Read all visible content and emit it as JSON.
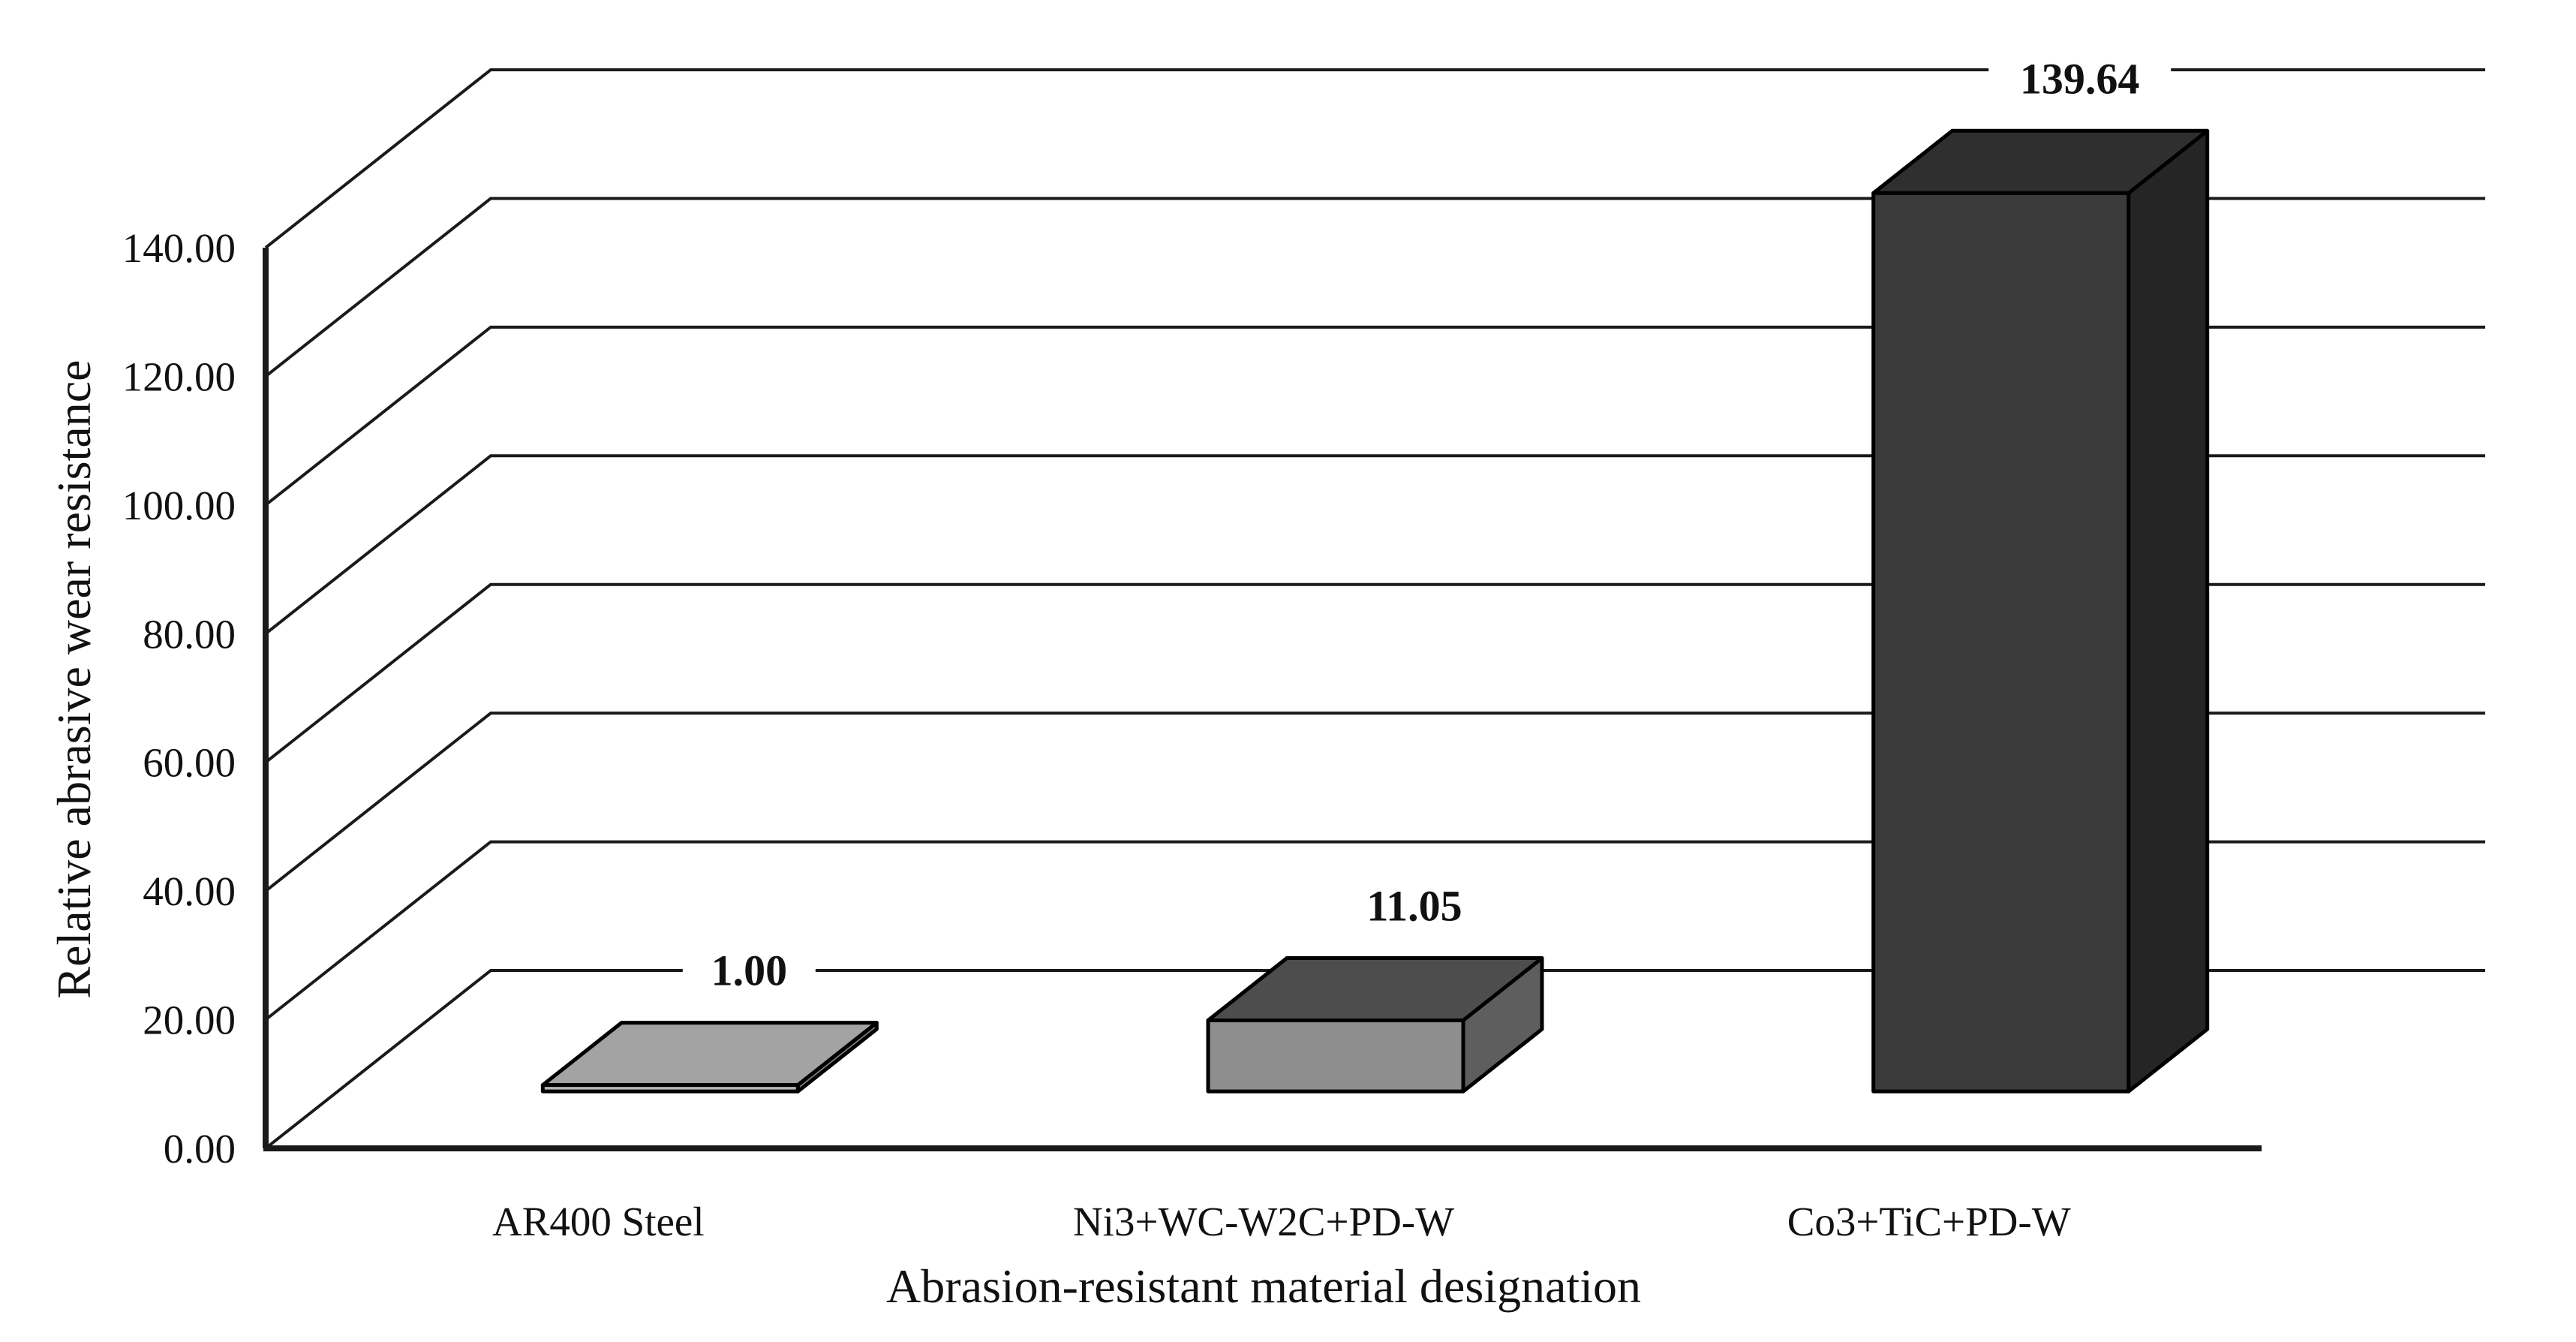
{
  "chart_data": {
    "type": "bar",
    "projection": "3d-perspective-column",
    "title": "",
    "xlabel": "Abrasion-resistant material designation",
    "ylabel": "Relative abrasive wear resistance",
    "categories": [
      "AR400 Steel",
      "Ni3+WC-W2C+PD-W",
      "Co3+TiC+PD-W"
    ],
    "values": [
      1.0,
      11.05,
      139.64
    ],
    "data_labels": [
      "1.00",
      "11.05",
      "139.64"
    ],
    "ylim": [
      0,
      140
    ],
    "ytick_step": 20,
    "ytick_labels": [
      "0.00",
      "20.00",
      "40.00",
      "60.00",
      "80.00",
      "100.00",
      "120.00",
      "140.00"
    ],
    "grid": true,
    "legend": false,
    "background_color": "#ffffff",
    "line_color": "#1a1a1a",
    "text_color": "#111111",
    "bar_outline_color": "#000000",
    "bar_colors": [
      {
        "front": "#b6b6b6",
        "top": "#a3a3a3",
        "side": "#808080"
      },
      {
        "front": "#8e8e8e",
        "top": "#4d4d4d",
        "side": "#5e5e5e"
      },
      {
        "front": "#3b3b3b",
        "top": "#2f2f2f",
        "side": "#252525"
      }
    ]
  }
}
